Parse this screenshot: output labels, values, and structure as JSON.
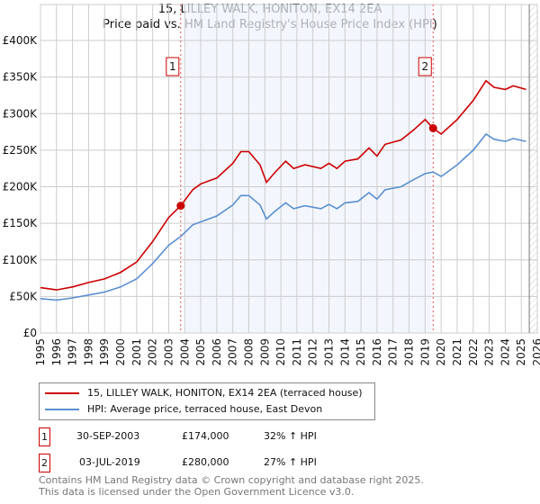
{
  "chart_data": {
    "type": "line",
    "title": "15, LILLEY WALK, HONITON, EX14 2EA",
    "subtitle": "Price paid vs. HM Land Registry's House Price Index (HPI)",
    "xlim": [
      1995,
      2026
    ],
    "ylim": [
      0,
      400000
    ],
    "x_ticks": [
      "1995",
      "1996",
      "1997",
      "1998",
      "1999",
      "2000",
      "2001",
      "2002",
      "2003",
      "2004",
      "2005",
      "2006",
      "2007",
      "2008",
      "2009",
      "2010",
      "2011",
      "2012",
      "2013",
      "2014",
      "2015",
      "2016",
      "2017",
      "2018",
      "2019",
      "2020",
      "2021",
      "2022",
      "2023",
      "2024",
      "2025",
      "2026"
    ],
    "y_ticks": [
      {
        "v": 0,
        "l": "£0"
      },
      {
        "v": 50000,
        "l": "£50K"
      },
      {
        "v": 100000,
        "l": "£100K"
      },
      {
        "v": 150000,
        "l": "£150K"
      },
      {
        "v": 200000,
        "l": "£200K"
      },
      {
        "v": 250000,
        "l": "£250K"
      },
      {
        "v": 300000,
        "l": "£300K"
      },
      {
        "v": 350000,
        "l": "£350K"
      },
      {
        "v": 400000,
        "l": "£400K"
      }
    ],
    "grid": true,
    "shaded_range": [
      2004.0,
      2019.4
    ],
    "hatched_range": [
      2025.5,
      2026
    ],
    "series": [
      {
        "name": "15, LILLEY WALK, HONITON, EX14 2EA (terraced house)",
        "color": "#cc0000",
        "x": [
          1995,
          1996,
          1997,
          1998,
          1999,
          2000,
          2001,
          2002,
          2003,
          2003.75,
          2004.5,
          2005,
          2006,
          2007,
          2007.5,
          2008,
          2008.7,
          2009.1,
          2009.6,
          2010.3,
          2010.8,
          2011.5,
          2012.5,
          2013,
          2013.5,
          2014,
          2014.8,
          2015.5,
          2016,
          2016.5,
          2017.5,
          2018.3,
          2019,
          2019.5,
          2020,
          2020.5,
          2021,
          2021.5,
          2022,
          2022.8,
          2023.3,
          2024,
          2024.5,
          2025.3
        ],
        "y": [
          62000,
          59000,
          63000,
          69000,
          74000,
          83000,
          97000,
          125000,
          158000,
          174000,
          196000,
          204000,
          212000,
          232000,
          248000,
          248000,
          230000,
          206000,
          219000,
          235000,
          225000,
          230000,
          225000,
          232000,
          225000,
          235000,
          238000,
          253000,
          242000,
          258000,
          264000,
          278000,
          292000,
          280000,
          272000,
          282000,
          292000,
          305000,
          318000,
          345000,
          336000,
          333000,
          338000,
          333000
        ]
      },
      {
        "name": "HPI: Average price, terraced house, East Devon",
        "color": "#5b8fd0",
        "x": [
          1995,
          1996,
          1997,
          1998,
          1999,
          2000,
          2001,
          2002,
          2003,
          2003.75,
          2004.5,
          2005,
          2006,
          2007,
          2007.5,
          2008,
          2008.7,
          2009.1,
          2009.6,
          2010.3,
          2010.8,
          2011.5,
          2012.5,
          2013,
          2013.5,
          2014,
          2014.8,
          2015.5,
          2016,
          2016.5,
          2017.5,
          2018.3,
          2019,
          2019.5,
          2020,
          2020.5,
          2021,
          2021.5,
          2022,
          2022.8,
          2023.3,
          2024,
          2024.5,
          2025.3
        ],
        "y": [
          47000,
          45000,
          48000,
          52000,
          56000,
          63000,
          74000,
          95000,
          120000,
          132000,
          148000,
          152000,
          160000,
          175000,
          188000,
          188000,
          175000,
          156000,
          166000,
          178000,
          170000,
          174000,
          170000,
          176000,
          170000,
          178000,
          180000,
          192000,
          183000,
          196000,
          200000,
          210000,
          218000,
          220000,
          214000,
          222000,
          230000,
          240000,
          250000,
          272000,
          265000,
          262000,
          266000,
          262000
        ]
      }
    ],
    "annotations": [
      {
        "label": "1",
        "x": 2003.75,
        "y": 174000
      },
      {
        "label": "2",
        "x": 2019.5,
        "y": 280000
      }
    ]
  },
  "transactions": [
    {
      "num": "1",
      "date": "30-SEP-2003",
      "price": "£174,000",
      "hpi": "32% ↑ HPI"
    },
    {
      "num": "2",
      "date": "03-JUL-2019",
      "price": "£280,000",
      "hpi": "27% ↑ HPI"
    }
  ],
  "footer": {
    "line1": "Contains HM Land Registry data © Crown copyright and database right 2025.",
    "line2": "This data is licensed under the Open Government Licence v3.0."
  }
}
